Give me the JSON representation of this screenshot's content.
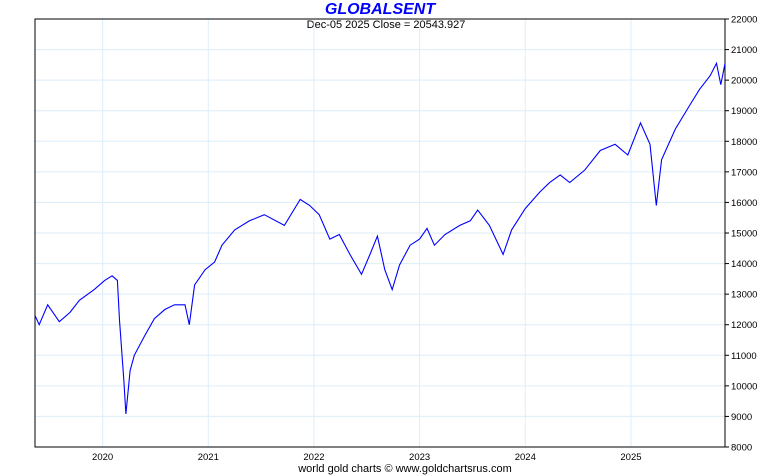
{
  "chart_data": {
    "type": "line",
    "title": "GLOBALSENT",
    "subtitle": "Dec-05  2025    Close = 20543.927",
    "footer": "world gold charts © www.goldchartsrus.com",
    "xlabel": "",
    "ylabel": "",
    "xlim": [
      2019.36,
      2025.89
    ],
    "ylim": [
      8000,
      22000
    ],
    "x_ticks": [
      {
        "v": 2020,
        "label": "2020"
      },
      {
        "v": 2021,
        "label": "2021"
      },
      {
        "v": 2022,
        "label": "2022"
      },
      {
        "v": 2023,
        "label": "2023"
      },
      {
        "v": 2024,
        "label": "2024"
      },
      {
        "v": 2025,
        "label": "2025"
      }
    ],
    "y_ticks": [
      8000,
      9000,
      10000,
      11000,
      12000,
      13000,
      14000,
      15000,
      16000,
      17000,
      18000,
      19000,
      20000,
      21000,
      22000
    ],
    "y_axis_side": "right",
    "grid": true,
    "line_color": "#0000ff",
    "grid_color": "#dceefa",
    "series": [
      {
        "name": "GLOBALSENT",
        "x": [
          2019.36,
          2019.4,
          2019.48,
          2019.59,
          2019.69,
          2019.78,
          2019.92,
          2020.02,
          2020.09,
          2020.14,
          2020.16,
          2020.2,
          2020.22,
          2020.26,
          2020.3,
          2020.4,
          2020.49,
          2020.59,
          2020.68,
          2020.78,
          2020.82,
          2020.87,
          2020.97,
          2021.06,
          2021.13,
          2021.25,
          2021.39,
          2021.53,
          2021.72,
          2021.87,
          2021.96,
          2022.05,
          2022.15,
          2022.24,
          2022.34,
          2022.45,
          2022.53,
          2022.6,
          2022.67,
          2022.74,
          2022.81,
          2022.91,
          2023.0,
          2023.07,
          2023.14,
          2023.24,
          2023.38,
          2023.48,
          2023.55,
          2023.66,
          2023.79,
          2023.87,
          2024.0,
          2024.14,
          2024.23,
          2024.33,
          2024.42,
          2024.56,
          2024.71,
          2024.85,
          2024.97,
          2025.09,
          2025.18,
          2025.24,
          2025.29,
          2025.42,
          2025.56,
          2025.65,
          2025.75,
          2025.81,
          2025.85,
          2025.89
        ],
        "y": [
          12300,
          12000,
          12650,
          12100,
          12400,
          12800,
          13150,
          13450,
          13600,
          13450,
          12150,
          10200,
          9080,
          10500,
          11000,
          11650,
          12200,
          12500,
          12650,
          12650,
          12000,
          13300,
          13800,
          14050,
          14600,
          15100,
          15400,
          15600,
          15250,
          16100,
          15900,
          15600,
          14800,
          14950,
          14300,
          13650,
          14300,
          14900,
          13800,
          13150,
          13950,
          14600,
          14800,
          15150,
          14600,
          14950,
          15250,
          15400,
          15750,
          15250,
          14300,
          15100,
          15800,
          16350,
          16650,
          16900,
          16650,
          17050,
          17700,
          17900,
          17550,
          18600,
          17900,
          15900,
          17400,
          18400,
          19200,
          19700,
          20150,
          20550,
          19850,
          20544
        ]
      }
    ]
  }
}
